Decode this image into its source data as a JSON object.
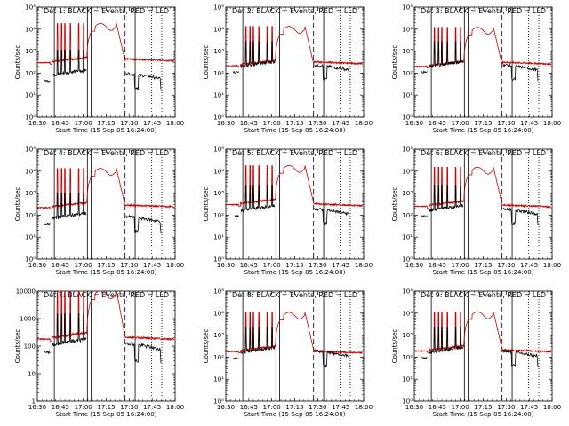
{
  "chart_data": {
    "type": "line",
    "scale": "log",
    "colors": {
      "events": "#000000",
      "lld": "#cc0000"
    },
    "x_tick_labels": [
      "16:30",
      "16:45",
      "17:00",
      "17:15",
      "17:30",
      "17:45",
      "18:00"
    ],
    "x_range_min": [
      16.5,
      18.0
    ],
    "panels": [
      {
        "title": "Det 1: BLACK = Events, RED = LLD",
        "ylabel": "Counts/sec",
        "xlabel": "Start Time (15-Sep-05 16:24:00)",
        "ylim": [
          1,
          100000
        ],
        "yticks": [
          "10⁰",
          "10¹",
          "10²",
          "10³",
          "10⁴",
          "10⁵"
        ],
        "lld_base": 300,
        "lld_late": 350,
        "events_base": 45
      },
      {
        "title": "Det 2: BLACK = Events, RED = LLD",
        "ylabel": "Counts/sec",
        "xlabel": "Start Time (15-Sep-05 16:24:00)",
        "ylim": [
          1,
          100000
        ],
        "yticks": [
          "10⁰",
          "10¹",
          "10²",
          "10³",
          "10⁴",
          "10⁵"
        ],
        "lld_base": 220,
        "lld_late": 260,
        "events_base": 110
      },
      {
        "title": "Det 3: BLACK = Events, RED = LLD",
        "ylabel": "Counts/sec",
        "xlabel": "Start Time (15-Sep-05 16:24:00)",
        "ylim": [
          1,
          100000
        ],
        "yticks": [
          "10⁰",
          "10¹",
          "10²",
          "10³",
          "10⁴",
          "10⁵"
        ],
        "lld_base": 200,
        "lld_late": 250,
        "events_base": 110
      },
      {
        "title": "Det 4: BLACK = Events, RED = LLD",
        "ylabel": "Counts/sec",
        "xlabel": "Start Time (15-Sep-05 16:24:00)",
        "ylim": [
          1,
          100000
        ],
        "yticks": [
          "10⁰",
          "10¹",
          "10²",
          "10³",
          "10⁴",
          "10⁵"
        ],
        "lld_base": 220,
        "lld_late": 230,
        "events_base": 40
      },
      {
        "title": "Det 5: BLACK = Events, RED = LLD",
        "ylabel": "Counts/sec",
        "xlabel": "Start Time (15-Sep-05 16:24:00)",
        "ylim": [
          1,
          100000
        ],
        "yticks": [
          "10⁰",
          "10¹",
          "10²",
          "10³",
          "10⁴",
          "10⁵"
        ],
        "lld_base": 300,
        "lld_late": 260,
        "events_base": 90
      },
      {
        "title": "Det 6: BLACK = Events, RED = LLD",
        "ylabel": "Counts/sec",
        "xlabel": "Start Time (15-Sep-05 16:24:00)",
        "ylim": [
          1,
          100000
        ],
        "yticks": [
          "10⁰",
          "10¹",
          "10²",
          "10³",
          "10⁴",
          "10⁵"
        ],
        "lld_base": 250,
        "lld_late": 230,
        "events_base": 90
      },
      {
        "title": "Det 7: BLACK = Events, RED = LLD",
        "ylabel": "Counts/sec",
        "xlabel": "Start Time (15-Sep-05 16:24:00)",
        "ylim": [
          1,
          10000
        ],
        "yticks": [
          "1",
          "10",
          "100",
          "1000",
          "10000"
        ],
        "lld_base": 180,
        "lld_late": 170,
        "events_base": 60
      },
      {
        "title": "Det 8: BLACK = Events, RED = LLD",
        "ylabel": "Counts/sec",
        "xlabel": "Start Time (15-Sep-05 16:24:00)",
        "ylim": [
          1,
          100000
        ],
        "yticks": [
          "10⁰",
          "10¹",
          "10²",
          "10³",
          "10⁴",
          "10⁵"
        ],
        "lld_base": 180,
        "lld_late": 150,
        "events_base": 90
      },
      {
        "title": "Det 9: BLACK = Events, RED = LLD",
        "ylabel": "Counts/sec",
        "xlabel": "Start Time (15-Sep-05 16:24:00)",
        "ylim": [
          1,
          100000
        ],
        "yticks": [
          "10⁰",
          "10¹",
          "10²",
          "10³",
          "10⁴",
          "10⁵"
        ],
        "lld_base": 190,
        "lld_late": 170,
        "events_base": 90
      }
    ],
    "markers": [
      {
        "t": 16.685,
        "style": "solid"
      },
      {
        "t": 17.045,
        "style": "solid"
      },
      {
        "t": 17.085,
        "style": "solid"
      },
      {
        "t": 17.455,
        "style": "dashed"
      },
      {
        "t": 17.565,
        "style": "solid"
      },
      {
        "t": 17.745,
        "style": "dotted"
      },
      {
        "t": 17.855,
        "style": "dotted"
      }
    ]
  }
}
